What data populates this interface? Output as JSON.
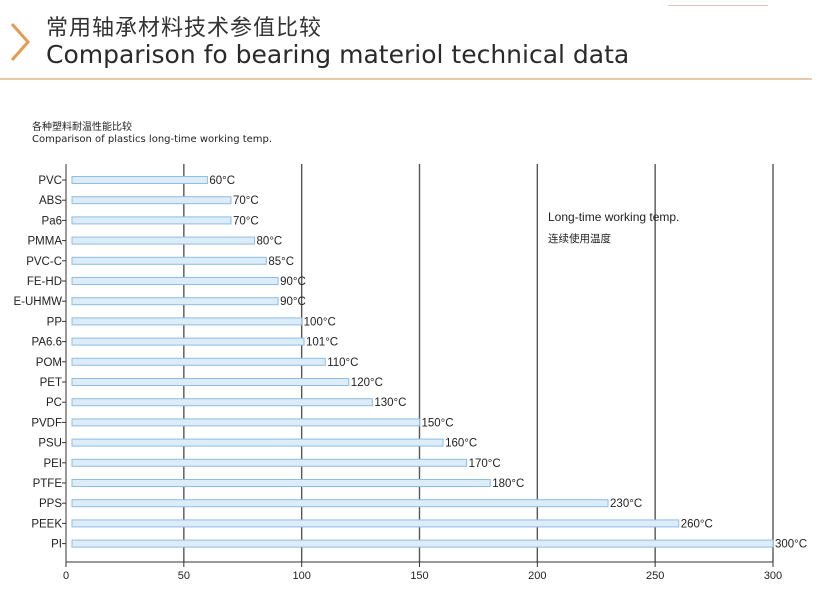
{
  "header": {
    "title_zh": "常用轴承材料技术参值比较",
    "title_en": "Comparison fo bearing materiol technical data"
  },
  "chart_data": {
    "type": "bar",
    "orientation": "horizontal",
    "subtitle_zh": "各种塑料耐温性能比较",
    "subtitle_en": "Comparison of plastics long-time working temp.",
    "legend_text_en": "Long-time working temp.",
    "legend_text_zh": "连续使用温度",
    "unit": "°C",
    "categories": [
      "PVC",
      "ABS",
      "Pa6",
      "PMMA",
      "PVC-C",
      "FE-HD",
      "E-UHMW",
      "PP",
      "PA6.6",
      "POM",
      "PET",
      "PC",
      "PVDF",
      "PSU",
      "PEI",
      "PTFE",
      "PPS",
      "PEEK",
      "PI"
    ],
    "values": [
      60,
      70,
      70,
      80,
      85,
      90,
      90,
      100,
      101,
      110,
      120,
      130,
      150,
      160,
      170,
      180,
      230,
      260,
      300
    ],
    "value_labels": [
      "60°C",
      "70°C",
      "70°C",
      "80°C",
      "85°C",
      "90°C",
      "90°C",
      "100°C",
      "101°C",
      "110°C",
      "120°C",
      "130°C",
      "150°C",
      "160°C",
      "170°C",
      "180°C",
      "230°C",
      "260°C",
      "300°C"
    ],
    "x_ticks": [
      0,
      50,
      100,
      150,
      200,
      250,
      300
    ],
    "xlim": [
      0,
      300
    ],
    "grid": true,
    "bar_color": "#dcecf8",
    "bar_edge_color": "#8fbde3",
    "grid_color": "#555555"
  }
}
